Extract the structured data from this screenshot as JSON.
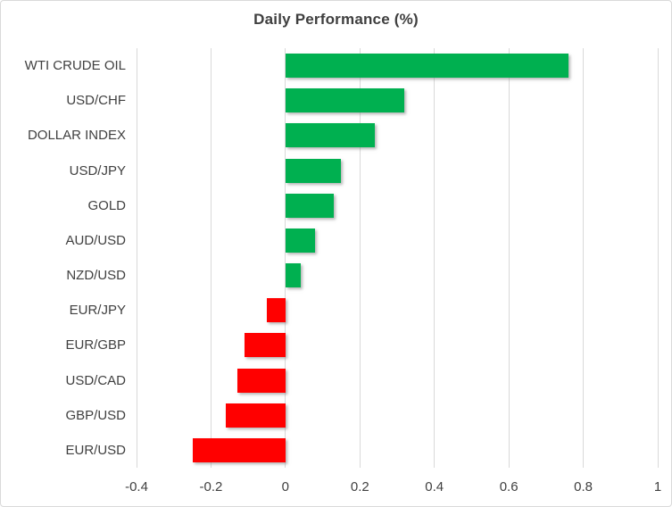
{
  "chart_data": {
    "type": "bar",
    "orientation": "horizontal",
    "title": "Daily Performance (%)",
    "categories": [
      "WTI CRUDE OIL",
      "USD/CHF",
      "DOLLAR INDEX",
      "USD/JPY",
      "GOLD",
      "AUD/USD",
      "NZD/USD",
      "EUR/JPY",
      "EUR/GBP",
      "USD/CAD",
      "GBP/USD",
      "EUR/USD"
    ],
    "values": [
      0.76,
      0.32,
      0.24,
      0.15,
      0.13,
      0.08,
      0.04,
      -0.05,
      -0.11,
      -0.13,
      -0.16,
      -0.25
    ],
    "xlim": [
      -0.4,
      1.0
    ],
    "xtick_values": [
      -0.4,
      -0.2,
      0,
      0.2,
      0.4,
      0.6,
      0.8,
      1
    ],
    "xtick_labels": [
      "-0.4",
      "-0.2",
      "0",
      "0.2",
      "0.4",
      "0.6",
      "0.8",
      "1"
    ],
    "grid": "vertical-gridlines-on",
    "legend": "none",
    "colors": {
      "positive": "#00B050",
      "negative": "#FF0000",
      "gridline": "#D9D9D9",
      "text": "#404040",
      "title_text": "#3F3F3F",
      "border": "#D9D9D9",
      "background": "#FFFFFF"
    }
  }
}
